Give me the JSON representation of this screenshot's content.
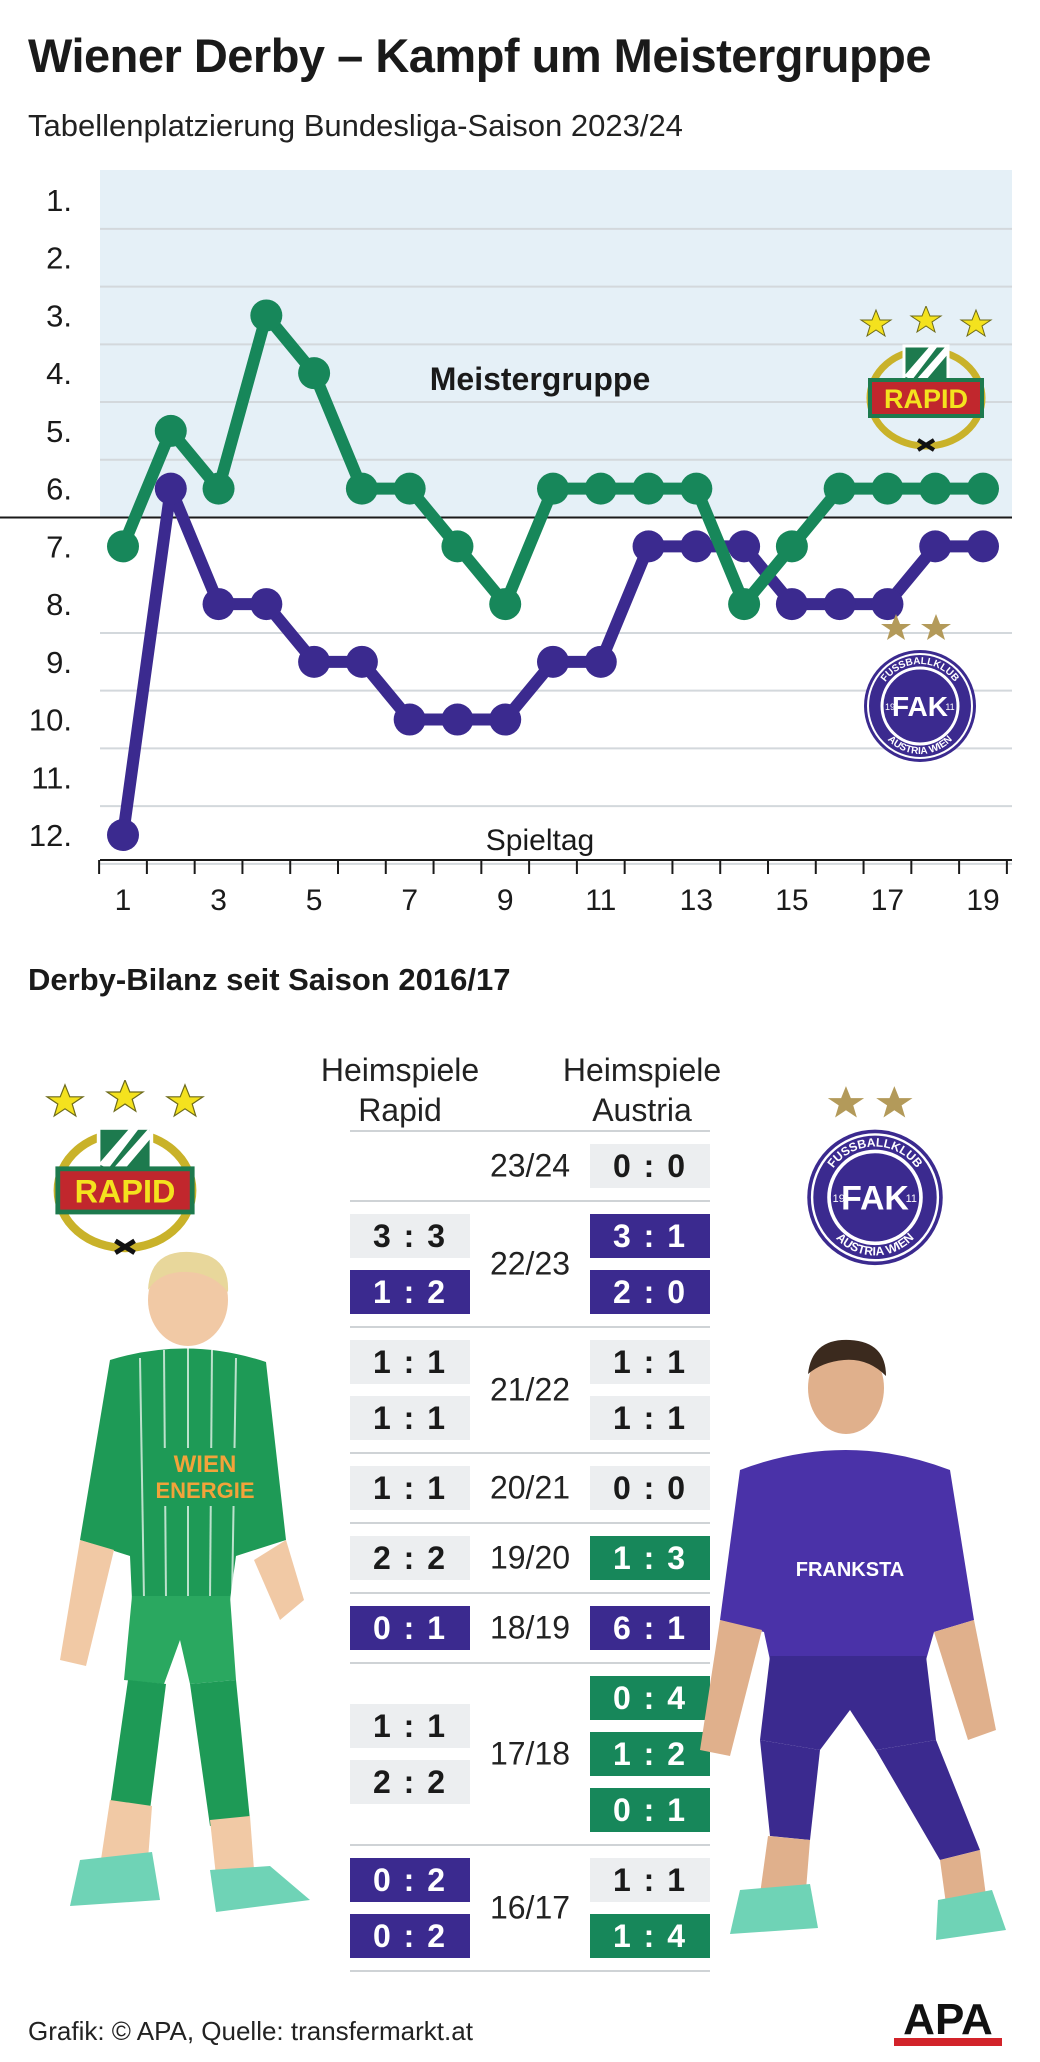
{
  "title": "Wiener Derby – Kampf um Meistergruppe",
  "subtitle": "Tabellenplatzierung Bundesliga-Saison 2023/24",
  "chart_data": {
    "type": "line",
    "x": [
      1,
      2,
      3,
      4,
      5,
      6,
      7,
      8,
      9,
      10,
      11,
      12,
      13,
      14,
      15,
      16,
      17,
      18,
      19
    ],
    "x_tick_labels": [
      "1",
      "3",
      "5",
      "7",
      "9",
      "11",
      "13",
      "15",
      "17",
      "19"
    ],
    "x_ticks": [
      1,
      3,
      5,
      7,
      9,
      11,
      13,
      15,
      17,
      19
    ],
    "y_tick_labels": [
      "1.",
      "2.",
      "3.",
      "4.",
      "5.",
      "6.",
      "7.",
      "8.",
      "9.",
      "10.",
      "11.",
      "12."
    ],
    "ylim": [
      1,
      12
    ],
    "y_inverted": true,
    "xlabel": "Spieltag",
    "zone_label": "Meistergruppe",
    "zone_until_rank": 6,
    "series": [
      {
        "name": "Rapid",
        "color": "#17875a",
        "values": [
          7,
          5,
          6,
          3,
          4,
          6,
          6,
          7,
          8,
          6,
          6,
          6,
          6,
          8,
          7,
          6,
          6,
          6,
          6
        ]
      },
      {
        "name": "Austria",
        "color": "#3b2a8f",
        "values": [
          12,
          6,
          8,
          8,
          9,
          9,
          10,
          10,
          10,
          9,
          9,
          7,
          7,
          7,
          8,
          8,
          8,
          7,
          7
        ]
      }
    ]
  },
  "logos": {
    "rapid": "RAPID",
    "austria_ring": "FUSSBALLKLUB",
    "austria_ring_bottom": "AUSTRIA WIEN",
    "austria_letters": "FAK",
    "austria_year_left": "19",
    "austria_year_right": "11"
  },
  "derby": {
    "heading": "Derby-Bilanz seit Saison 2016/17",
    "col_home_rapid": [
      "Heimspiele",
      "Rapid"
    ],
    "col_home_austria": [
      "Heimspiele",
      "Austria"
    ],
    "seasons": [
      {
        "season": "23/24",
        "rapid_home": [],
        "austria_home": [
          {
            "score": "0 : 0",
            "winner": "draw"
          }
        ]
      },
      {
        "season": "22/23",
        "rapid_home": [
          {
            "score": "3 : 3",
            "winner": "draw"
          },
          {
            "score": "1 : 2",
            "winner": "austria"
          }
        ],
        "austria_home": [
          {
            "score": "3 : 1",
            "winner": "austria"
          },
          {
            "score": "2 : 0",
            "winner": "austria"
          }
        ]
      },
      {
        "season": "21/22",
        "rapid_home": [
          {
            "score": "1 : 1",
            "winner": "draw"
          },
          {
            "score": "1 : 1",
            "winner": "draw"
          }
        ],
        "austria_home": [
          {
            "score": "1 : 1",
            "winner": "draw"
          },
          {
            "score": "1 : 1",
            "winner": "draw"
          }
        ]
      },
      {
        "season": "20/21",
        "rapid_home": [
          {
            "score": "1 : 1",
            "winner": "draw"
          }
        ],
        "austria_home": [
          {
            "score": "0 : 0",
            "winner": "draw"
          }
        ]
      },
      {
        "season": "19/20",
        "rapid_home": [
          {
            "score": "2 : 2",
            "winner": "draw"
          }
        ],
        "austria_home": [
          {
            "score": "1 : 3",
            "winner": "rapid"
          }
        ]
      },
      {
        "season": "18/19",
        "rapid_home": [
          {
            "score": "0 : 1",
            "winner": "austria"
          }
        ],
        "austria_home": [
          {
            "score": "6 : 1",
            "winner": "austria"
          }
        ]
      },
      {
        "season": "17/18",
        "rapid_home": [
          {
            "score": "1 : 1",
            "winner": "draw"
          },
          {
            "score": "2 : 2",
            "winner": "draw"
          }
        ],
        "austria_home": [
          {
            "score": "0 : 4",
            "winner": "rapid"
          },
          {
            "score": "1 : 2",
            "winner": "rapid"
          },
          {
            "score": "0 : 1",
            "winner": "rapid"
          }
        ]
      },
      {
        "season": "16/17",
        "rapid_home": [
          {
            "score": "0 : 2",
            "winner": "austria"
          },
          {
            "score": "0 : 2",
            "winner": "austria"
          }
        ],
        "austria_home": [
          {
            "score": "1 : 1",
            "winner": "draw"
          },
          {
            "score": "1 : 4",
            "winner": "rapid"
          }
        ]
      }
    ]
  },
  "player_rapid": {
    "sponsor_line1": "WIEN",
    "sponsor_line2": "ENERGIE"
  },
  "player_austria": {
    "sponsor": "FRANKSTA"
  },
  "footer": {
    "source": "Grafik: © APA, Quelle: transfermarkt.at",
    "brand": "APA"
  }
}
